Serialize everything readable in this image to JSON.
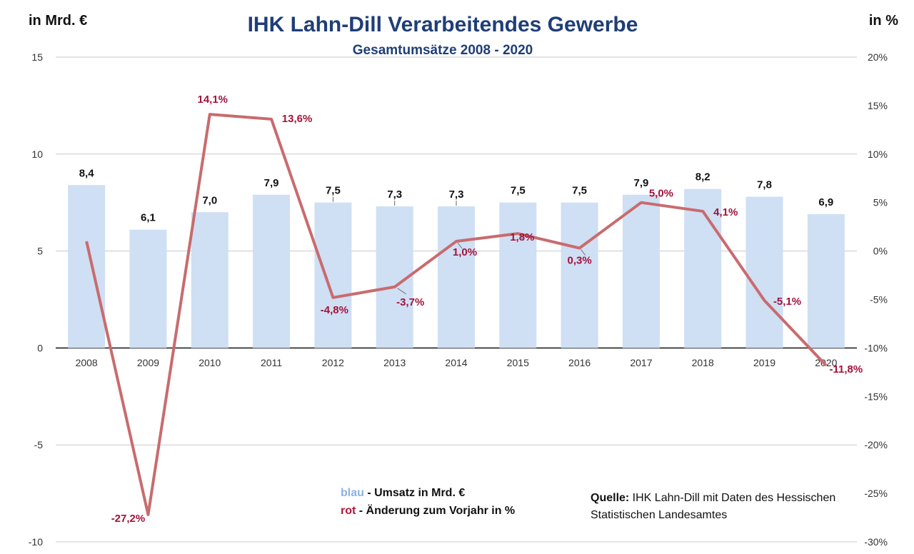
{
  "title": "IHK Lahn-Dill Verarbeitendes Gewerbe",
  "subtitle": "Gesamtumsätze 2008 - 2020",
  "left_unit": "in Mrd. €",
  "right_unit": "in %",
  "legend": {
    "blue_word": "blau",
    "blue_text": " - Umsatz in Mrd. €",
    "red_word": "rot",
    "red_text": " - Änderung zum Vorjahr in %"
  },
  "source": {
    "label": "Quelle:",
    "text": " IHK Lahn-Dill mit Daten des Hessischen Statistischen Landesamtes"
  },
  "colors": {
    "bar": "#cfdff4",
    "line": "#c96b6e",
    "pct_label": "#a3123a",
    "title": "#1f3e78",
    "legend_blue": "#8db3e2",
    "legend_red": "#b0163b"
  },
  "chart_data": {
    "type": "bar",
    "categories": [
      "2008",
      "2009",
      "2010",
      "2011",
      "2012",
      "2013",
      "2014",
      "2015",
      "2016",
      "2017",
      "2018",
      "2019",
      "2020"
    ],
    "series": [
      {
        "name": "Umsatz in Mrd. €",
        "type": "bar",
        "axis": "left",
        "values": [
          8.4,
          6.1,
          7.0,
          7.9,
          7.5,
          7.3,
          7.3,
          7.5,
          7.5,
          7.9,
          8.2,
          7.8,
          6.9
        ],
        "labels": [
          "8,4",
          "6,1",
          "7,0",
          "7,9",
          "7,5",
          "7,3",
          "7,3",
          "7,5",
          "7,5",
          "7,9",
          "8,2",
          "7,8",
          "6,9"
        ]
      },
      {
        "name": "Änderung zum Vorjahr in %",
        "type": "line",
        "axis": "right",
        "values": [
          1.0,
          -27.2,
          14.1,
          13.6,
          -4.8,
          -3.7,
          1.0,
          1.8,
          0.3,
          5.0,
          4.1,
          -5.1,
          -11.8
        ],
        "labels": [
          "",
          "-27,2%",
          "14,1%",
          "13,6%",
          "-4,8%",
          "-3,7%",
          "1,0%",
          "1,8%",
          "0,3%",
          "5,0%",
          "4,1%",
          "-5,1%",
          "-11,8%"
        ]
      }
    ],
    "y_left": {
      "min": -10,
      "max": 15,
      "ticks": [
        -10,
        -5,
        0,
        5,
        10,
        15
      ],
      "tick_labels": [
        "-10",
        "-5",
        "0",
        "5",
        "10",
        "15"
      ]
    },
    "y_right": {
      "min": -30,
      "max": 20,
      "ticks": [
        -30,
        -25,
        -20,
        -15,
        -10,
        -5,
        0,
        5,
        10,
        15,
        20
      ],
      "tick_labels": [
        "-30%",
        "-25%",
        "-20%",
        "-15%",
        "-10%",
        "-5%",
        "0%",
        "5%",
        "10%",
        "15%",
        "20%"
      ]
    },
    "grid": true
  }
}
